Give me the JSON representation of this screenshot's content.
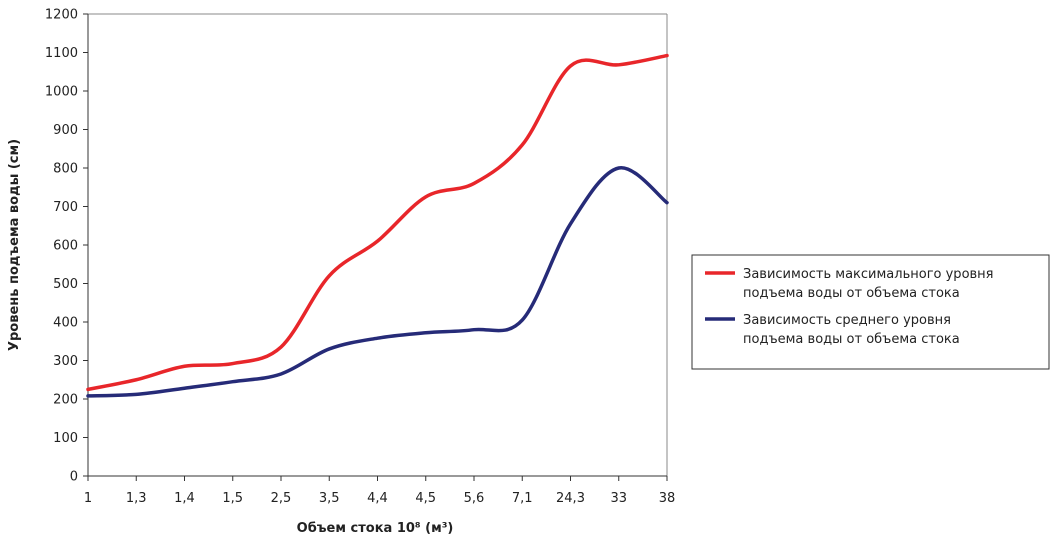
{
  "chart_data": {
    "type": "line",
    "title": "",
    "xlabel": "Объем стока 10⁸ (м³)",
    "ylabel": "Уровень подъема воды (см)",
    "categories": [
      "1",
      "1,3",
      "1,4",
      "1,5",
      "2,5",
      "3,5",
      "4,4",
      "4,5",
      "5,6",
      "7,1",
      "24,3",
      "33",
      "38"
    ],
    "ylim": [
      0,
      1200
    ],
    "yticks": [
      0,
      100,
      200,
      300,
      400,
      500,
      600,
      700,
      800,
      900,
      1000,
      1100,
      1200
    ],
    "grid": false,
    "legend_position": "right",
    "series": [
      {
        "name_lines": [
          "Зависимость максимального уровня",
          "подъема воды от объема стока"
        ],
        "color": "#e8262a",
        "values": [
          225,
          250,
          285,
          292,
          335,
          520,
          610,
          725,
          760,
          860,
          1065,
          1068,
          1092
        ]
      },
      {
        "name_lines": [
          "Зависимость среднего уровня",
          "подъема воды от объема стока"
        ],
        "color": "#262b78",
        "values": [
          208,
          212,
          228,
          245,
          265,
          330,
          358,
          372,
          380,
          405,
          655,
          800,
          710
        ]
      }
    ]
  }
}
